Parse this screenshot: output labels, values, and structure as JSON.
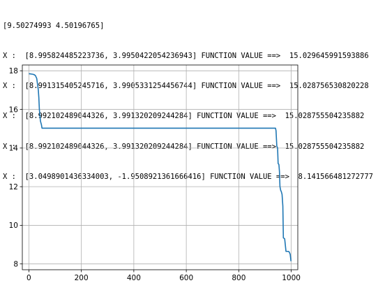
{
  "output_log": [
    "[9.50274993 4.50196765]",
    "X :  [8.995824485223736, 3.995042205423694З] FUNCTION VALUE ==>  15.029645991593886",
    "X :  [8.991315405245716, 3.9905331254456744] FUNCTION VALUE ==>  15.028756530820228",
    "X :  [8.992102489044326, 3.991320209244284] FUNCTION VALUE ==>  15.028755504235882",
    "X :  [8.992102489044326, 3.991320209244284] FUNCTION VALUE ==>  15.028755504235882",
    "X :  [3.0498901436334003, -1.9508921361666416] FUNCTION VALUE ==>  8.141566481272777"
  ],
  "chart_data": {
    "type": "line",
    "title": "",
    "xlabel": "",
    "ylabel": "",
    "xlim": [
      -25,
      1025
    ],
    "ylim": [
      7.7,
      18.3
    ],
    "xticks": [
      0,
      200,
      400,
      600,
      800,
      1000
    ],
    "yticks": [
      8,
      10,
      12,
      14,
      16,
      18
    ],
    "grid": true,
    "legend": "none",
    "series": [
      {
        "color": "#1f77b4",
        "x": [
          0,
          5,
          10,
          15,
          20,
          25,
          30,
          33,
          36,
          38,
          40,
          42,
          44,
          46,
          48,
          50,
          55,
          940,
          942,
          945,
          948,
          950,
          953,
          955,
          957,
          960,
          962,
          965,
          968,
          970,
          975,
          980,
          985,
          990,
          993,
          996,
          999
        ],
        "y": [
          17.85,
          17.84,
          17.83,
          17.82,
          17.8,
          17.75,
          17.6,
          17.3,
          17.0,
          16.6,
          16.0,
          15.7,
          15.4,
          15.3,
          15.2,
          15.03,
          15.03,
          15.03,
          14.9,
          14.1,
          14.0,
          13.2,
          13.15,
          12.8,
          12.0,
          11.8,
          11.75,
          11.6,
          11.0,
          9.35,
          9.3,
          8.65,
          8.65,
          8.65,
          8.6,
          8.5,
          8.14
        ]
      }
    ]
  }
}
